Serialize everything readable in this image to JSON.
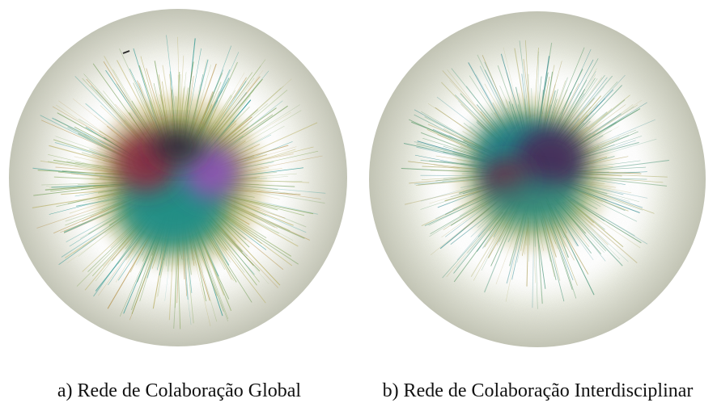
{
  "figures": [
    {
      "caption": "a) Rede de Colaboração Global",
      "image": "network-visualization-global",
      "palette": {
        "outer_ring": "#c9cbbd",
        "glow": "#ffffff",
        "halo": "#b3a956",
        "mid": "#6e9a52",
        "teal": "#1a8e89",
        "red": "#8d2a45",
        "purple": "#8a52b0",
        "dark": "#2c2138"
      }
    },
    {
      "caption": "b) Rede de Colaboração Interdisciplinar",
      "image": "network-visualization-interdisciplinary",
      "palette": {
        "outer_ring": "#c9cbbd",
        "glow": "#ffffff",
        "halo": "#aaa960",
        "mid": "#3f8f72",
        "teal": "#1f7f86",
        "red": "#6e2a45",
        "purple": "#4e2a5a",
        "dark": "#28203a"
      }
    }
  ]
}
